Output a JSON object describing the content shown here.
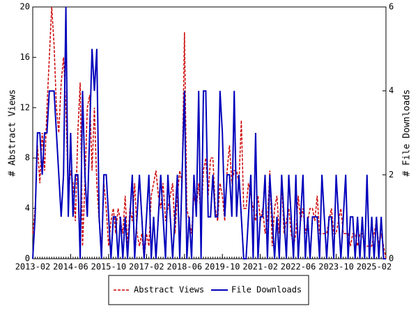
{
  "chart_data": {
    "type": "line",
    "x": [
      "2013-02",
      "2013-03",
      "2013-04",
      "2013-05",
      "2013-06",
      "2013-07",
      "2013-08",
      "2013-09",
      "2013-10",
      "2013-11",
      "2013-12",
      "2014-01",
      "2014-02",
      "2014-03",
      "2014-04",
      "2014-05",
      "2014-06",
      "2014-07",
      "2014-08",
      "2014-09",
      "2014-10",
      "2014-11",
      "2014-12",
      "2015-01",
      "2015-02",
      "2015-03",
      "2015-04",
      "2015-05",
      "2015-06",
      "2015-07",
      "2015-08",
      "2015-09",
      "2015-10",
      "2015-11",
      "2015-12",
      "2016-01",
      "2016-02",
      "2016-03",
      "2016-04",
      "2016-05",
      "2016-06",
      "2016-07",
      "2016-08",
      "2016-09",
      "2016-10",
      "2016-11",
      "2016-12",
      "2017-01",
      "2017-02",
      "2017-03",
      "2017-04",
      "2017-05",
      "2017-06",
      "2017-07",
      "2017-08",
      "2017-09",
      "2017-10",
      "2017-11",
      "2017-12",
      "2018-01",
      "2018-02",
      "2018-03",
      "2018-04",
      "2018-05",
      "2018-06",
      "2018-07",
      "2018-08",
      "2018-09",
      "2018-10",
      "2018-11",
      "2018-12",
      "2019-01",
      "2019-02",
      "2019-03",
      "2019-04",
      "2019-05",
      "2019-06",
      "2019-07",
      "2019-08",
      "2019-09",
      "2019-10",
      "2019-11",
      "2019-12",
      "2020-01",
      "2020-02",
      "2020-03",
      "2020-04",
      "2020-05",
      "2020-06",
      "2020-07",
      "2020-08",
      "2020-09",
      "2020-10",
      "2020-11",
      "2020-12",
      "2021-01",
      "2021-02",
      "2021-03",
      "2021-04",
      "2021-05",
      "2021-06",
      "2021-07",
      "2021-08",
      "2021-09",
      "2021-10",
      "2021-11",
      "2021-12",
      "2022-01",
      "2022-02",
      "2022-03",
      "2022-04",
      "2022-05",
      "2022-06",
      "2022-07",
      "2022-08",
      "2022-09",
      "2022-10",
      "2022-11",
      "2022-12",
      "2023-01",
      "2023-02",
      "2023-03",
      "2023-04",
      "2023-05",
      "2023-06",
      "2023-07",
      "2023-08",
      "2023-09",
      "2023-10",
      "2023-11",
      "2023-12",
      "2024-01",
      "2024-02",
      "2024-03",
      "2024-04",
      "2024-05",
      "2024-06",
      "2024-07",
      "2024-08",
      "2024-09",
      "2024-10",
      "2024-11",
      "2024-12",
      "2025-01",
      "2025-02",
      "2025-03",
      "2025-04",
      "2025-05",
      "2025-06",
      "2025-07"
    ],
    "series": [
      {
        "name": "Abstract Views",
        "color": "#cc0000",
        "axis": "y",
        "dashed": true,
        "values": [
          2,
          4,
          9,
          6,
          10,
          7,
          12,
          16,
          20,
          17,
          12,
          10,
          14,
          16,
          12,
          5,
          7,
          6,
          3,
          10,
          14,
          1,
          6,
          12,
          13,
          7,
          12,
          6,
          3,
          1,
          6,
          4,
          1,
          3,
          4,
          2,
          4,
          3,
          2,
          5,
          1,
          4,
          3,
          6,
          2,
          1,
          2,
          0,
          2,
          1,
          5,
          6,
          7,
          5,
          4,
          6,
          3,
          4,
          5,
          6,
          2,
          5,
          7,
          6,
          18,
          4,
          3,
          2,
          5,
          4,
          6,
          3,
          7,
          8,
          5,
          8,
          8,
          4,
          3,
          6,
          5,
          3,
          7,
          9,
          6,
          7,
          7,
          6,
          11,
          4,
          4,
          6,
          5,
          4,
          3,
          5,
          3,
          4,
          2,
          3,
          7,
          1,
          4,
          5,
          2,
          6,
          2,
          3,
          4,
          2,
          1,
          2,
          5,
          3,
          4,
          2,
          3,
          4,
          4,
          3,
          5,
          2,
          2,
          2,
          2,
          3,
          4,
          2,
          2,
          3,
          4,
          2,
          2,
          2,
          1,
          2,
          2,
          1,
          2,
          2,
          1,
          1,
          1,
          1,
          2,
          3,
          1,
          2,
          1,
          0
        ]
      },
      {
        "name": "File Downloads",
        "color": "#0000bb",
        "axis": "y2",
        "dashed": false,
        "values": [
          0,
          1,
          3,
          3,
          2,
          3,
          3,
          4,
          4,
          4,
          3,
          2,
          1,
          2,
          6,
          1,
          3,
          1,
          2,
          2,
          0,
          4,
          2,
          1,
          3,
          5,
          4,
          5,
          1,
          0,
          2,
          2,
          1,
          0,
          1,
          1,
          0,
          1,
          0,
          1,
          0,
          1,
          2,
          0,
          1,
          2,
          1,
          0,
          1,
          2,
          0,
          1,
          0,
          1,
          2,
          1,
          0,
          2,
          1,
          0,
          1,
          2,
          0,
          2,
          4,
          0,
          1,
          0,
          2,
          1,
          4,
          0,
          4,
          4,
          1,
          1,
          2,
          1,
          1,
          4,
          3,
          1,
          2,
          2,
          1,
          4,
          1,
          2,
          1,
          0,
          0,
          1,
          2,
          0,
          3,
          0,
          1,
          1,
          2,
          0,
          2,
          1,
          0,
          1,
          0,
          2,
          1,
          0,
          2,
          1,
          0,
          2,
          0,
          1,
          2,
          0,
          1,
          0,
          1,
          1,
          1,
          0,
          2,
          1,
          0,
          1,
          1,
          0,
          2,
          1,
          0,
          1,
          2,
          0,
          1,
          1,
          0,
          1,
          0,
          1,
          0,
          2,
          0,
          1,
          0,
          1,
          0,
          1,
          0,
          0
        ]
      }
    ],
    "ylabel": "# Abstract Views",
    "y2label": "# File Downloads",
    "ylim": [
      0,
      20
    ],
    "yticks": [
      0,
      4,
      8,
      12,
      16,
      20
    ],
    "y2lim": [
      0,
      6
    ],
    "y2ticks": [
      0,
      2,
      4,
      6
    ],
    "xticks": [
      "2013-02",
      "2014-06",
      "2015-10",
      "2017-02",
      "2018-06",
      "2019-10",
      "2021-02",
      "2022-06",
      "2023-10",
      "2025-02"
    ],
    "legend": "bottom"
  }
}
